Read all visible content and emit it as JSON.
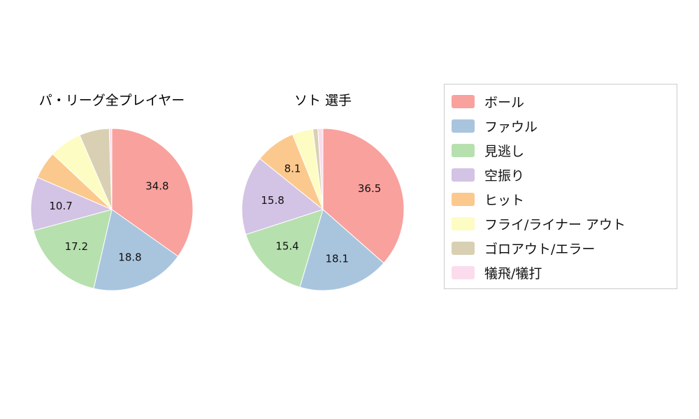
{
  "page": {
    "background": "#ffffff"
  },
  "charts": {
    "left": {
      "title": "パ・リーグ全プレイヤー"
    },
    "right": {
      "title": "ソト  選手"
    }
  },
  "legend": {
    "items": [
      {
        "label": "ボール",
        "color": "#f9a19d"
      },
      {
        "label": "ファウル",
        "color": "#a9c5de"
      },
      {
        "label": "見逃し",
        "color": "#b6e0ae"
      },
      {
        "label": "空振り",
        "color": "#d3c3e5"
      },
      {
        "label": "ヒット",
        "color": "#fbc98e"
      },
      {
        "label": "フライ/ライナー アウト",
        "color": "#fdfcc3"
      },
      {
        "label": "ゴロアウト/エラー",
        "color": "#d9d0b4"
      },
      {
        "label": "犠飛/犠打",
        "color": "#fbdcec"
      }
    ]
  },
  "chart_data": [
    {
      "type": "pie",
      "id": "left",
      "title": "パ・リーグ全プレイヤー",
      "start_angle": "top",
      "direction": "clockwise",
      "categories": [
        "ボール",
        "ファウル",
        "見逃し",
        "空振り",
        "ヒット",
        "フライ/ライナー アウト",
        "ゴロアウト/エラー",
        "犠飛/犠打"
      ],
      "values": [
        34.8,
        18.8,
        17.2,
        10.7,
        5.5,
        6.5,
        6.0,
        0.5
      ],
      "labels": [
        "34.8",
        "18.8",
        "17.2",
        "10.7",
        null,
        null,
        null,
        null
      ],
      "colors": [
        "#f9a19d",
        "#a9c5de",
        "#b6e0ae",
        "#d3c3e5",
        "#fbc98e",
        "#fdfcc3",
        "#d9d0b4",
        "#fbdcec"
      ]
    },
    {
      "type": "pie",
      "id": "right",
      "title": "ソト  選手",
      "start_angle": "top",
      "direction": "clockwise",
      "categories": [
        "ボール",
        "ファウル",
        "見逃し",
        "空振り",
        "ヒット",
        "フライ/ライナー アウト",
        "ゴロアウト/エラー",
        "犠飛/犠打"
      ],
      "values": [
        36.5,
        18.1,
        15.4,
        15.8,
        8.1,
        4.1,
        1.0,
        1.0
      ],
      "labels": [
        "36.5",
        "18.1",
        "15.4",
        "15.8",
        "8.1",
        null,
        null,
        null
      ],
      "colors": [
        "#f9a19d",
        "#a9c5de",
        "#b6e0ae",
        "#d3c3e5",
        "#fbc98e",
        "#fdfcc3",
        "#d9d0b4",
        "#fbdcec"
      ]
    }
  ]
}
